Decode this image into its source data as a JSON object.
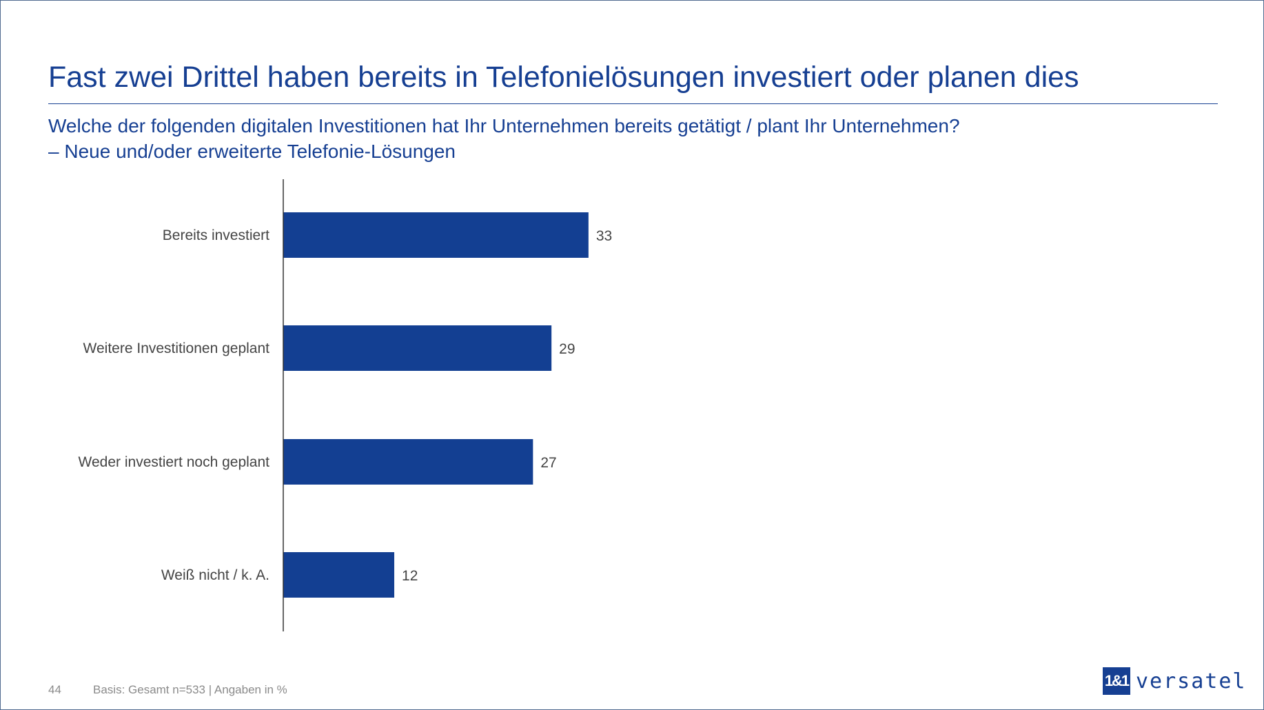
{
  "title": "Fast zwei Drittel haben bereits in Telefonielösungen investiert oder planen dies",
  "subtitle_line1": "Welche der folgenden digitalen Investitionen hat Ihr Unternehmen bereits getätigt / plant Ihr Unternehmen?",
  "subtitle_line2": "– Neue und/oder erweiterte Telefonie-Lösungen",
  "chart_data": {
    "type": "bar",
    "orientation": "horizontal",
    "categories": [
      "Bereits investiert",
      "Weitere Investitionen geplant",
      "Weder investiert noch geplant",
      "Weiß nicht / k. A."
    ],
    "values": [
      33,
      29,
      27,
      12
    ],
    "unit": "%",
    "grid": false,
    "bar_color": "#133f92"
  },
  "footer": {
    "page_number": "44",
    "note": "Basis: Gesamt n=533 | Angaben in %"
  },
  "logo": {
    "mark": "1&1",
    "word": "versatel",
    "color": "#163f92"
  }
}
